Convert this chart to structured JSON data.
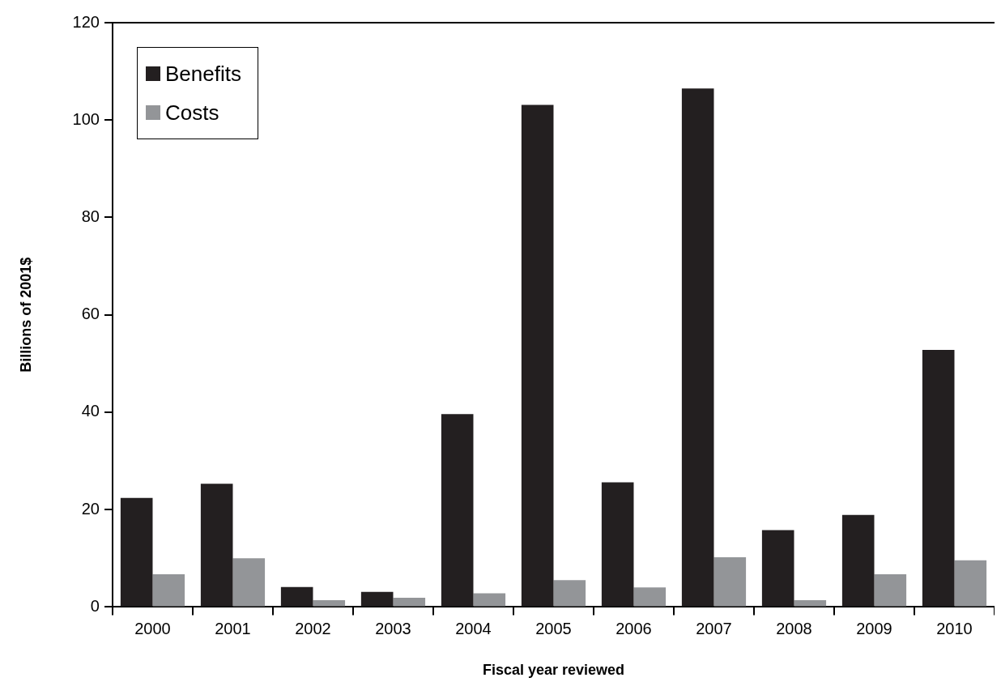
{
  "chart_data": {
    "type": "bar",
    "xlabel": "Fiscal year reviewed",
    "ylabel": "Billions of 2001$",
    "categories": [
      "2000",
      "2001",
      "2002",
      "2003",
      "2004",
      "2005",
      "2006",
      "2007",
      "2008",
      "2009",
      "2010"
    ],
    "series": [
      {
        "name": "Benefits",
        "color": "#231f20",
        "values": [
          22.4,
          25.3,
          4.1,
          3.1,
          39.6,
          103.1,
          25.6,
          106.5,
          15.8,
          18.9,
          52.8
        ]
      },
      {
        "name": "Costs",
        "color": "#939598",
        "values": [
          6.7,
          10.0,
          1.4,
          1.9,
          2.8,
          5.5,
          4.0,
          10.2,
          1.4,
          6.7,
          9.6
        ]
      }
    ],
    "ylim": [
      0,
      120
    ],
    "yticks": [
      0,
      20,
      40,
      60,
      80,
      100,
      120
    ],
    "grid": false,
    "legend": "top left"
  }
}
